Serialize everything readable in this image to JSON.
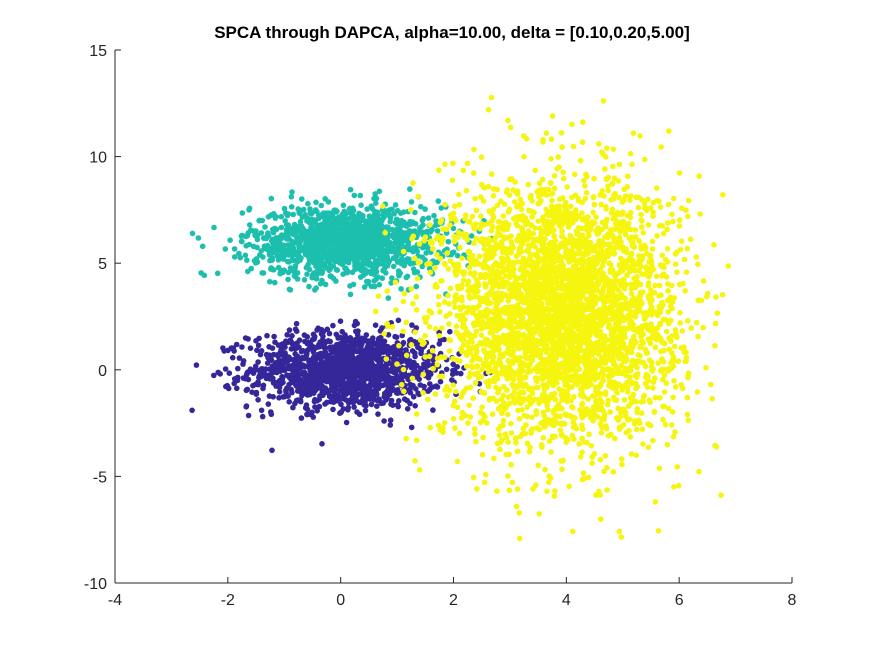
{
  "chart_data": {
    "type": "scatter",
    "title": "SPCA through DAPCA, alpha=10.00, delta = [0.10,0.20,5.00]",
    "xlabel": "",
    "ylabel": "",
    "xlim": [
      -4,
      8
    ],
    "ylim": [
      -10,
      15
    ],
    "xticks": [
      -4,
      -2,
      0,
      2,
      4,
      6,
      8
    ],
    "yticks": [
      -10,
      -5,
      0,
      5,
      10,
      15
    ],
    "xtick_labels": [
      "-4",
      "-2",
      "0",
      "2",
      "4",
      "6",
      "8"
    ],
    "ytick_labels": [
      "-10",
      "-5",
      "0",
      "5",
      "10",
      "15"
    ],
    "grid": false,
    "legend": "none",
    "series": [
      {
        "color": "#35279a",
        "count": 1400,
        "center": [
          0.1,
          0.0
        ],
        "std": [
          0.85,
          0.9
        ],
        "x_range": [
          -3.2,
          2.8
        ],
        "y_range": [
          -4.4,
          2.4
        ]
      },
      {
        "color": "#1cbfae",
        "count": 1400,
        "center": [
          0.1,
          6.0
        ],
        "std": [
          0.85,
          0.85
        ],
        "x_range": [
          -3.5,
          2.8
        ],
        "y_range": [
          3.0,
          8.7
        ]
      },
      {
        "color": "#f5f50f",
        "count": 3800,
        "center": [
          3.9,
          2.7
        ],
        "std": [
          1.05,
          3.0
        ],
        "x_range": [
          0.6,
          7.0
        ],
        "y_range": [
          -8.9,
          13.9
        ]
      }
    ]
  }
}
